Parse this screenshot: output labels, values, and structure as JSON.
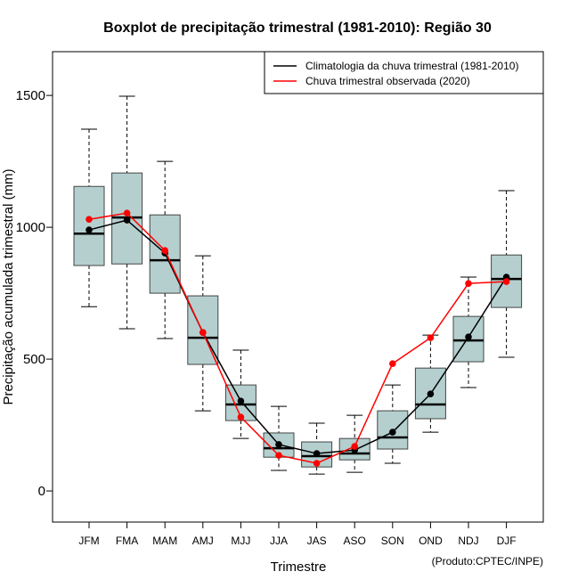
{
  "chart_data": {
    "type": "boxplot",
    "title": "Boxplot de precipitação trimestral (1981-2010): Região 30",
    "xlabel": "Trimestre",
    "ylabel": "Precipitação acumulada trimestral (mm)",
    "ylim": [
      -118,
      1666
    ],
    "yticks": [
      0,
      500,
      1000,
      1500
    ],
    "ytick_labels": [
      "0",
      "500",
      "1000",
      "1500"
    ],
    "categories": [
      "JFM",
      "FMA",
      "MAM",
      "AMJ",
      "MJJ",
      "JJA",
      "JAS",
      "ASO",
      "SON",
      "OND",
      "NDJ",
      "DJF"
    ],
    "boxes": [
      {
        "whisker_low": 699,
        "q1": 855,
        "median": 976,
        "q3": 1155,
        "whisker_high": 1372
      },
      {
        "whisker_low": 615,
        "q1": 861,
        "median": 1037,
        "q3": 1206,
        "whisker_high": 1497
      },
      {
        "whisker_low": 578,
        "q1": 750,
        "median": 875,
        "q3": 1047,
        "whisker_high": 1250
      },
      {
        "whisker_low": 304,
        "q1": 480,
        "median": 581,
        "q3": 740,
        "whisker_high": 892
      },
      {
        "whisker_low": 199,
        "q1": 267,
        "median": 328,
        "q3": 402,
        "whisker_high": 534
      },
      {
        "whisker_low": 78,
        "q1": 128,
        "median": 162,
        "q3": 220,
        "whisker_high": 321
      },
      {
        "whisker_low": 64,
        "q1": 91,
        "median": 132,
        "q3": 186,
        "whisker_high": 257
      },
      {
        "whisker_low": 71,
        "q1": 118,
        "median": 142,
        "q3": 199,
        "whisker_high": 287
      },
      {
        "whisker_low": 105,
        "q1": 159,
        "median": 203,
        "q3": 304,
        "whisker_high": 402
      },
      {
        "whisker_low": 223,
        "q1": 274,
        "median": 328,
        "q3": 466,
        "whisker_high": 591
      },
      {
        "whisker_low": 392,
        "q1": 490,
        "median": 571,
        "q3": 662,
        "whisker_high": 811
      },
      {
        "whisker_low": 507,
        "q1": 696,
        "median": 804,
        "q3": 895,
        "whisker_high": 1139
      }
    ],
    "series": [
      {
        "name": "Climatologia da chuva trimestral (1981-2010)",
        "color": "#000000",
        "values": [
          990,
          1027,
          902,
          601,
          341,
          176,
          142,
          155,
          223,
          368,
          584,
          811
        ]
      },
      {
        "name": "Chuva trimestral observada (2020)",
        "color": "#ff0000",
        "values": [
          1030,
          1054,
          912,
          601,
          280,
          135,
          105,
          169,
          483,
          581,
          787,
          794
        ]
      }
    ],
    "box_fill": "#b5cfcf",
    "legend_placement": "top-right",
    "grid": false,
    "footnote": "(Produto:CPTEC/INPE)"
  }
}
